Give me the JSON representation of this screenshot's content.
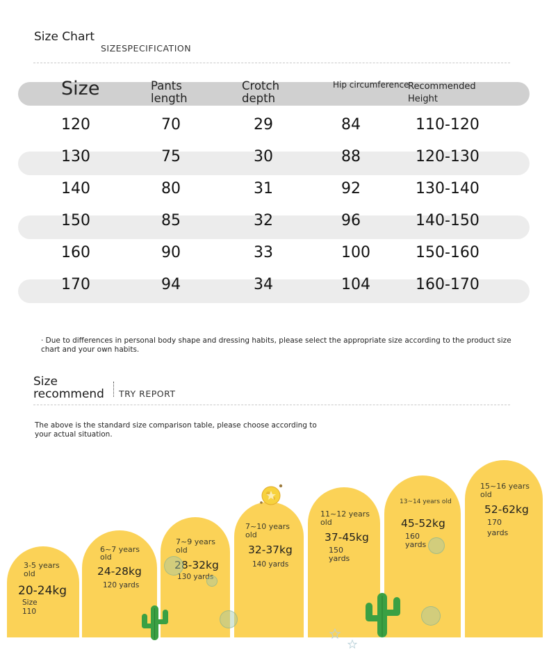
{
  "size_chart": {
    "title": "Size Chart",
    "subtitle": "SIZESPECIFICATION",
    "headers": {
      "size": "Size",
      "pants_1": "Pants",
      "pants_2": "length",
      "crotch_1": "Crotch",
      "crotch_2": "depth",
      "hip": "Hip circumference",
      "rec_1": "Recommended",
      "rec_2": "Height"
    },
    "rows": [
      [
        "120",
        "70",
        "29",
        "84",
        "110-120"
      ],
      [
        "130",
        "75",
        "30",
        "88",
        "120-130"
      ],
      [
        "140",
        "80",
        "31",
        "92",
        "130-140"
      ],
      [
        "150",
        "85",
        "32",
        "96",
        "140-150"
      ],
      [
        "160",
        "90",
        "33",
        "100",
        "150-160"
      ],
      [
        "170",
        "94",
        "34",
        "104",
        "160-170"
      ]
    ],
    "note_1": "· Due to differences in personal body shape and dressing habits, please select the appropriate size according to the product size",
    "note_2": "chart and your own habits."
  },
  "size_recommend": {
    "title_1": "Size",
    "title_2": "recommend",
    "subtitle": "TRY REPORT",
    "note_1": "The above is the standard size comparison table, please choose according to",
    "note_2": "your actual situation.",
    "pillars": [
      {
        "age": "3-5 years",
        "age2": "old",
        "weight": "20-24kg",
        "yards": "Size",
        "yards2": "110"
      },
      {
        "age": "6~7 years",
        "age2": "old",
        "weight": "24-28kg",
        "yards": "120 yards",
        "yards2": ""
      },
      {
        "age": "7~9 years",
        "age2": "old",
        "weight": "28-32kg",
        "yards": "130 yards",
        "yards2": ""
      },
      {
        "age": "7~10 years",
        "age2": "old",
        "weight": "32-37kg",
        "yards": "140 yards",
        "yards2": ""
      },
      {
        "age": "11~12 years",
        "age2": "old",
        "weight": "37-45kg",
        "yards": "150",
        "yards2": "yards"
      },
      {
        "age": "13~14 years old",
        "age2": "",
        "weight": "45-52kg",
        "yards": "160",
        "yards2": "yards"
      },
      {
        "age": "15~16 years",
        "age2": "old",
        "weight": "52-62kg",
        "yards": "170",
        "yards2": "yards"
      }
    ]
  },
  "colors": {
    "pillar": "#fbd257",
    "header_band": "#d0d0d0",
    "row_band": "#ececec",
    "cactus": "#3aa043"
  }
}
